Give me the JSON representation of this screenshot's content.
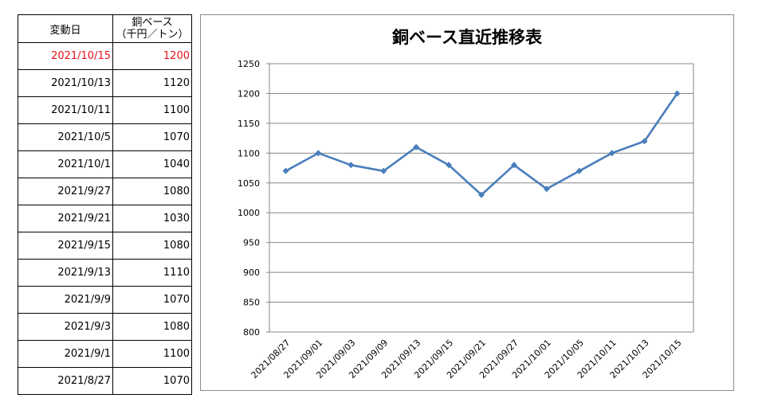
{
  "table": {
    "header": {
      "date": "変動日",
      "price_line1": "銅ベース",
      "price_line2": "（千円／トン）"
    },
    "rows": [
      {
        "date": "2021/10/15",
        "price": "1200"
      },
      {
        "date": "2021/10/13",
        "price": "1120"
      },
      {
        "date": "2021/10/11",
        "price": "1100"
      },
      {
        "date": "2021/10/5",
        "price": "1070"
      },
      {
        "date": "2021/10/1",
        "price": "1040"
      },
      {
        "date": "2021/9/27",
        "price": "1080"
      },
      {
        "date": "2021/9/21",
        "price": "1030"
      },
      {
        "date": "2021/9/15",
        "price": "1080"
      },
      {
        "date": "2021/9/13",
        "price": "1110"
      },
      {
        "date": "2021/9/9",
        "price": "1070"
      },
      {
        "date": "2021/9/3",
        "price": "1080"
      },
      {
        "date": "2021/9/1",
        "price": "1100"
      },
      {
        "date": "2021/8/27",
        "price": "1070"
      }
    ],
    "highlight_color": "#e8101c"
  },
  "chart_data": {
    "type": "line",
    "title": "銅ベース直近推移表",
    "xlabel": "",
    "ylabel": "",
    "categories": [
      "2021/08/27",
      "2021/09/01",
      "2021/09/03",
      "2021/09/09",
      "2021/09/13",
      "2021/09/15",
      "2021/09/21",
      "2021/09/27",
      "2021/10/01",
      "2021/10/05",
      "2021/10/11",
      "2021/10/13",
      "2021/10/15"
    ],
    "series": [
      {
        "values": [
          1070,
          1100,
          1080,
          1070,
          1110,
          1080,
          1030,
          1080,
          1040,
          1070,
          1100,
          1120,
          1200
        ],
        "color": "#4a7ebb"
      }
    ],
    "ylim": [
      800,
      1250
    ],
    "yticks": [
      800,
      850,
      900,
      950,
      1000,
      1050,
      1100,
      1150,
      1200,
      1250
    ],
    "grid": true,
    "legend": "none",
    "marker": "diamond"
  }
}
